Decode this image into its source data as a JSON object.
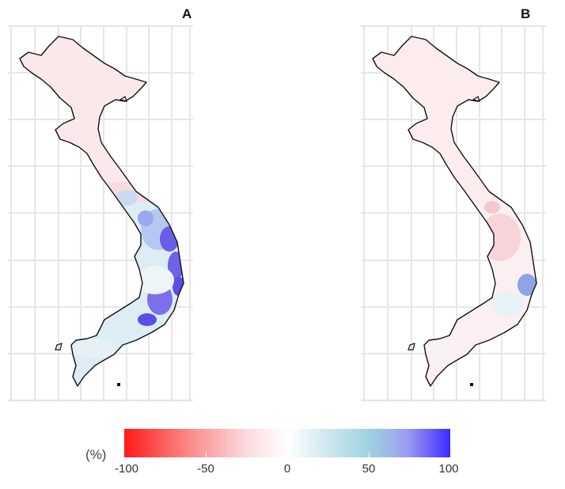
{
  "panels": [
    {
      "label": "A"
    },
    {
      "label": "B"
    }
  ],
  "legend": {
    "unit": "(%)",
    "min": -100,
    "max": 100,
    "ticks": [
      "-100",
      "-50",
      "0",
      "50",
      "100"
    ],
    "colors": {
      "negative_extreme": "#ff1a1a",
      "neutral": "#ffffff",
      "positive_mid": "#9fd3e0",
      "positive_extreme": "#3b2bff"
    }
  },
  "map_style": {
    "outline_color": "#111111",
    "grid_color": "#e6e6e6",
    "north_fill": "#fbe8ea",
    "panel_a_south_fill": "#dcedf3",
    "panel_b_south_fill": "#fbeff1",
    "hotspot_color": "#5a4de8",
    "panel_b_hotspot_color": "#8fa3e6",
    "central_red_color": "#f6d4d8"
  }
}
